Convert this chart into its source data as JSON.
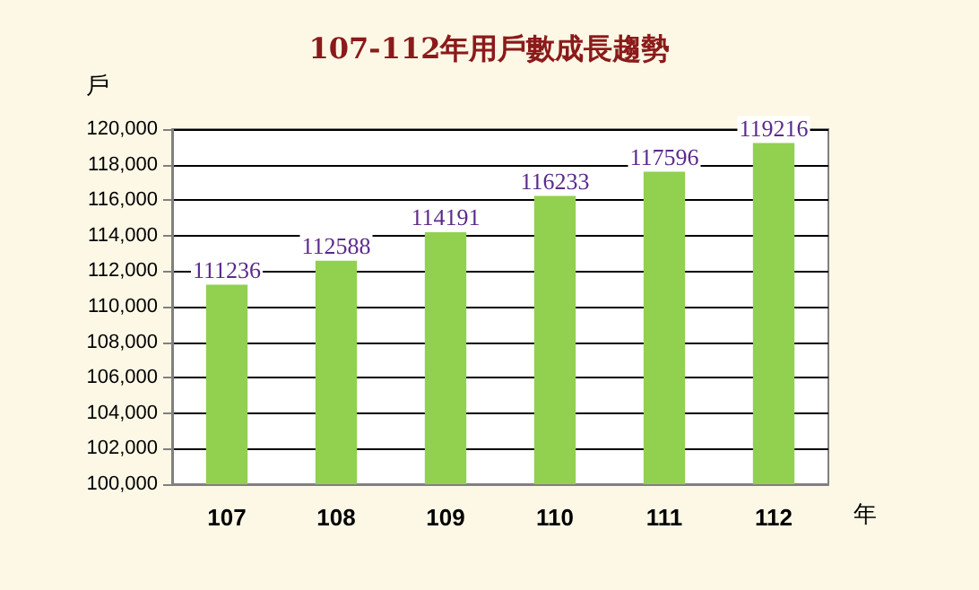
{
  "chart_data": {
    "type": "bar",
    "title": "107-112年用戶數成長趨勢",
    "xlabel": "年",
    "ylabel": "戶",
    "categories": [
      "107",
      "108",
      "109",
      "110",
      "111",
      "112"
    ],
    "values": [
      111236,
      112588,
      114191,
      116233,
      117596,
      119216
    ],
    "color": "#92d050",
    "data_labels": true,
    "grid": "y",
    "ylim": [
      100000,
      120000
    ],
    "yticks": [
      {
        "value": 100000,
        "label": "100,000"
      },
      {
        "value": 102000,
        "label": "102,000"
      },
      {
        "value": 104000,
        "label": "104,000"
      },
      {
        "value": 106000,
        "label": "106,000"
      },
      {
        "value": 108000,
        "label": "108,000"
      },
      {
        "value": 110000,
        "label": "110,000"
      },
      {
        "value": 112000,
        "label": "112,000"
      },
      {
        "value": 114000,
        "label": "114,000"
      },
      {
        "value": 116000,
        "label": "116,000"
      },
      {
        "value": 118000,
        "label": "118,000"
      },
      {
        "value": 120000,
        "label": "120,000"
      }
    ]
  }
}
